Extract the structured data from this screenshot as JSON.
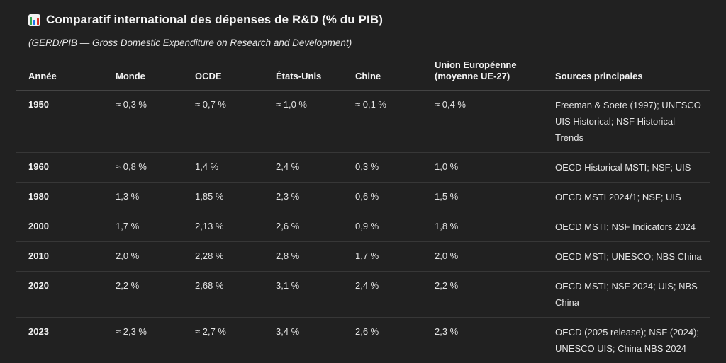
{
  "header": {
    "icon": "bar-chart-icon",
    "title": "Comparatif international des dépenses de R&D (% du PIB)",
    "subtitle": "(GERD/PIB — Gross Domestic Expenditure on Research and Development)"
  },
  "colors": {
    "background": "#212121",
    "text": "#ececec",
    "divider": "#373737",
    "header_divider": "#444444",
    "icon_bar_green": "#2da44e",
    "icon_bar_blue": "#1f6feb",
    "icon_bar_red": "#d93025"
  },
  "chart_data": {
    "type": "table",
    "title": "Comparatif international des dépenses de R&D (% du PIB)",
    "subtitle": "(GERD/PIB — Gross Domestic Expenditure on Research and Development)",
    "columns": [
      "Année",
      "Monde",
      "OCDE",
      "États-Unis",
      "Chine",
      "Union Européenne (moyenne UE-27)",
      "Sources principales"
    ],
    "rows": [
      [
        "1950",
        "≈ 0,3 %",
        "≈ 0,7 %",
        "≈ 1,0 %",
        "≈ 0,1 %",
        "≈ 0,4 %",
        "Freeman & Soete (1997); UNESCO UIS Historical; NSF Historical Trends"
      ],
      [
        "1960",
        "≈ 0,8 %",
        "1,4 %",
        "2,4 %",
        "0,3 %",
        "1,0 %",
        "OECD Historical MSTI; NSF; UIS"
      ],
      [
        "1980",
        "1,3 %",
        "1,85 %",
        "2,3 %",
        "0,6 %",
        "1,5 %",
        "OECD MSTI 2024/1; NSF; UIS"
      ],
      [
        "2000",
        "1,7 %",
        "2,13 %",
        "2,6 %",
        "0,9 %",
        "1,8 %",
        "OECD MSTI; NSF Indicators 2024"
      ],
      [
        "2010",
        "2,0 %",
        "2,28 %",
        "2,8 %",
        "1,7 %",
        "2,0 %",
        "OECD MSTI; UNESCO; NBS China"
      ],
      [
        "2020",
        "2,2 %",
        "2,68 %",
        "3,1 %",
        "2,4 %",
        "2,2 %",
        "OECD MSTI; NSF 2024; UIS; NBS China"
      ],
      [
        "2023",
        "≈ 2,3 %",
        "≈ 2,7 %",
        "3,4 %",
        "2,6 %",
        "2,3 %",
        "OECD (2025 release); NSF (2024); UNESCO UIS; China NBS 2024"
      ]
    ]
  }
}
